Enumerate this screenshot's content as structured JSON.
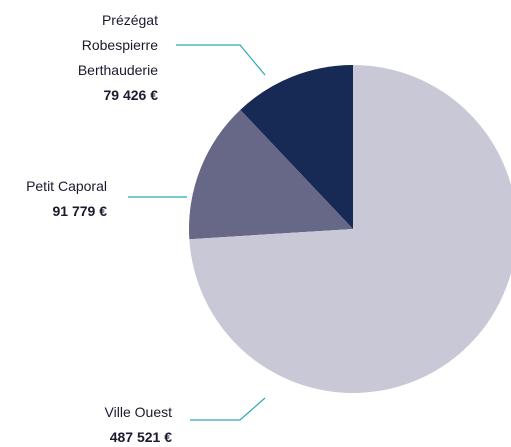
{
  "chart_data": {
    "type": "pie",
    "categories": [
      "Prézégat Robespierre Berthauderie",
      "Petit Caporal",
      "Ville Ouest"
    ],
    "values": [
      79426,
      91779,
      487521
    ],
    "value_labels": [
      "79 426 €",
      "91 779 €",
      "487 521 €"
    ],
    "colors": [
      "#172a55",
      "#676787",
      "#c8c8d6"
    ]
  }
}
